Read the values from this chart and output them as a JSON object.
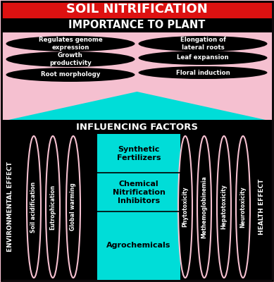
{
  "title": "SOIL NITRIFICATION",
  "title_bg": "#dd1111",
  "title_color": "white",
  "section1_title": "IMPORTANCE TO PLANT",
  "importance_items_left": [
    "Regulates genome\nexpression",
    "Growth\nproductivity",
    "Root morphology"
  ],
  "importance_items_right": [
    "Elongation of\nlateral roots",
    "Leaf expansion",
    "Floral induction"
  ],
  "influencing_title": "INFLUENCING FACTORS",
  "center_items": [
    "Synthetic\nFertilizers",
    "Chemical\nNitrification\nInhibitors",
    "Agrochemicals"
  ],
  "env_items": [
    "Soil acidification",
    "Eutrophication",
    "Global warming"
  ],
  "env_label": "ENVIRONMENTAL EFFECT",
  "health_items": [
    "Phytotoxicity",
    "Methemoglobinemia",
    "Hepatotoxicity",
    "Neurotoxicity"
  ],
  "health_label": "HEALTH EFFECT",
  "pink": "#f5c0d0",
  "cyan": "#00ddd8",
  "black": "#000000",
  "white": "#ffffff",
  "red": "#dd1111"
}
